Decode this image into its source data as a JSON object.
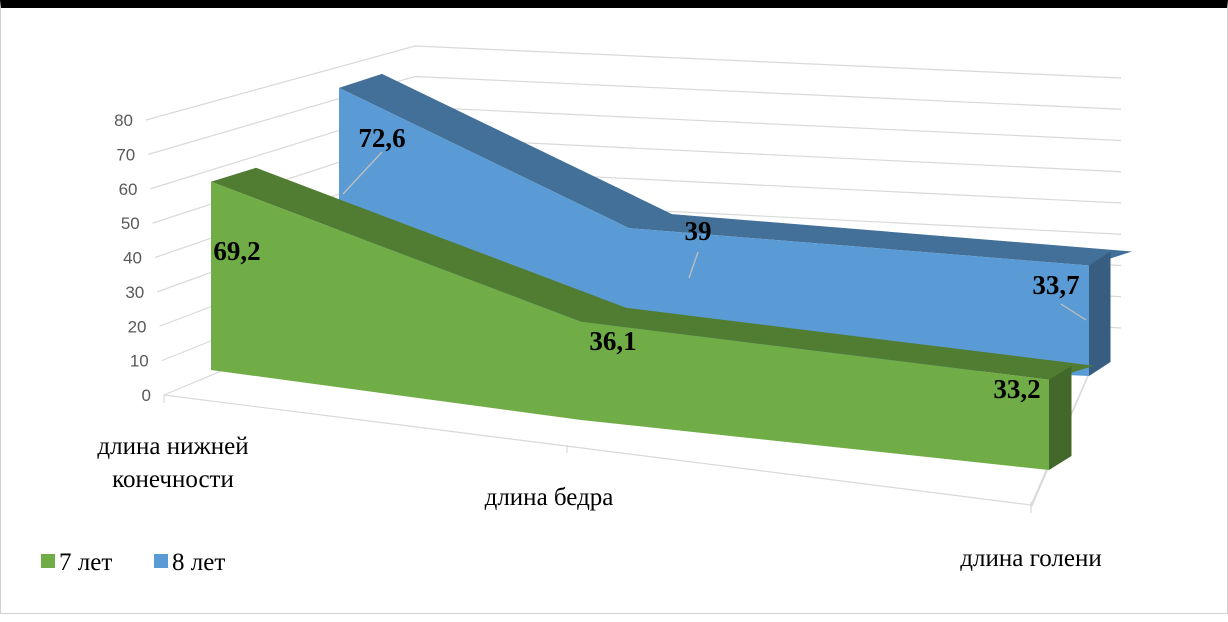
{
  "chart_data": {
    "type": "area",
    "title": "",
    "xlabel": "",
    "ylabel": "",
    "ylim": [
      0,
      80
    ],
    "y_ticks": [
      "0",
      "10",
      "20",
      "30",
      "40",
      "50",
      "60",
      "70",
      "80"
    ],
    "categories": [
      "длина нижней конечности",
      "длина бедра",
      "длина голени"
    ],
    "category_lines": [
      [
        "длина нижней",
        "конечности"
      ],
      [
        "длина бедра"
      ],
      [
        "длина голени"
      ]
    ],
    "series": [
      {
        "name": "7 лет",
        "values": [
          69.2,
          36.1,
          33.2
        ],
        "labels": [
          "69,2",
          "36,1",
          "33,2"
        ],
        "color": "#70ad47"
      },
      {
        "name": "8 лет",
        "values": [
          72.6,
          39,
          33.7
        ],
        "labels": [
          "72,6",
          "39",
          "33,7"
        ],
        "color": "#5b9bd5"
      }
    ],
    "grid": true,
    "legend": "bottom-left",
    "style": "3d"
  }
}
